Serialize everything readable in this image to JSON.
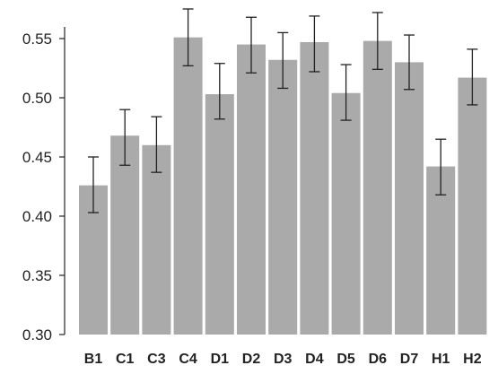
{
  "chart_data": {
    "type": "bar",
    "title": "",
    "xlabel": "",
    "ylabel": "",
    "categories": [
      "B1",
      "C1",
      "C3",
      "C4",
      "D1",
      "D2",
      "D3",
      "D4",
      "D5",
      "D6",
      "D7",
      "H1",
      "H2"
    ],
    "values": [
      0.426,
      0.468,
      0.46,
      0.551,
      0.503,
      0.545,
      0.532,
      0.547,
      0.504,
      0.548,
      0.53,
      0.442,
      0.517
    ],
    "error_upper": [
      0.45,
      0.49,
      0.484,
      0.575,
      0.529,
      0.568,
      0.555,
      0.569,
      0.528,
      0.572,
      0.553,
      0.465,
      0.541
    ],
    "error_lower": [
      0.403,
      0.443,
      0.437,
      0.527,
      0.482,
      0.521,
      0.508,
      0.522,
      0.481,
      0.524,
      0.507,
      0.418,
      0.494
    ],
    "ylim": [
      0.3,
      0.57
    ],
    "yticks": [
      "0.30",
      "0.35",
      "0.40",
      "0.45",
      "0.50",
      "0.55"
    ],
    "bar_color": "#aaaaaa",
    "grid": false,
    "legend": "none"
  }
}
